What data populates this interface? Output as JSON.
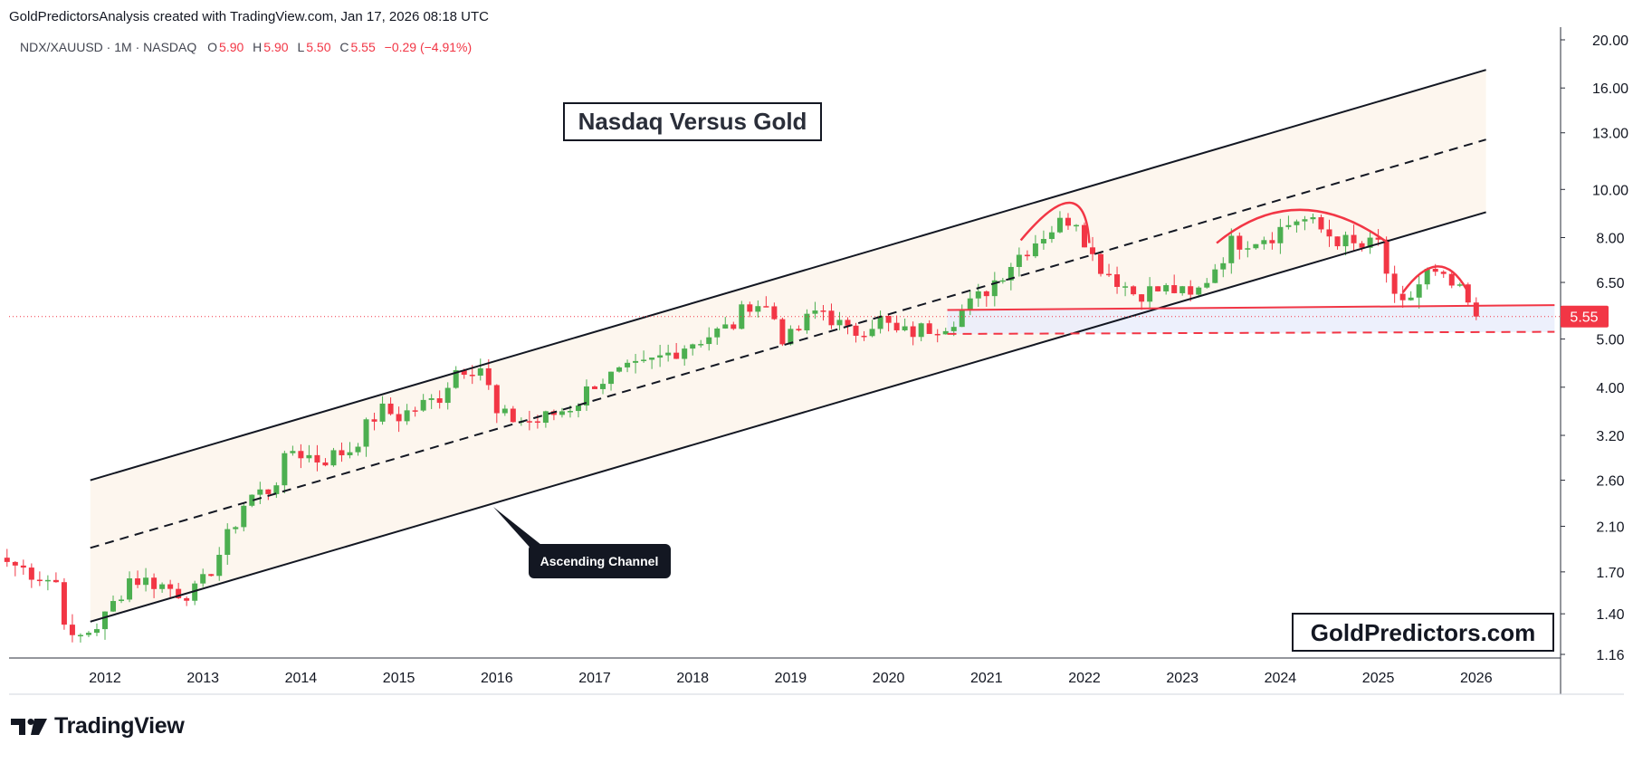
{
  "header": {
    "attribution": "GoldPredictorsAnalysis created with TradingView.com, Jan 17, 2026 08:18 UTC"
  },
  "legend": {
    "symbol": "NDX/XAUUSD · 1M · NASDAQ",
    "open_label": "O",
    "open": "5.90",
    "high_label": "H",
    "high": "5.90",
    "low_label": "L",
    "low": "5.50",
    "close_label": "C",
    "close": "5.55",
    "change": "−0.29 (−4.91%)"
  },
  "annotations": {
    "title_box": "Nasdaq Versus Gold",
    "channel_callout": "Ascending Channel",
    "watermark": "GoldPredictors.com",
    "last_price_tag": "5.55"
  },
  "footer": {
    "brand": "TradingView"
  },
  "colors": {
    "up": "#26a69a",
    "up_body": "#4caf50",
    "down": "#f23645",
    "channel_fill": "#fdf6ee",
    "zone_fill": "#e8ecfb",
    "price_line": "#f23645"
  },
  "chart_data": {
    "type": "candlestick",
    "scale": "log",
    "ylim": [
      1.16,
      20.0
    ],
    "y_ticks": [
      "20.00",
      "16.00",
      "13.00",
      "10.00",
      "8.00",
      "6.50",
      "5.00",
      "4.00",
      "3.20",
      "2.60",
      "2.10",
      "1.70",
      "1.40",
      "1.16"
    ],
    "x_ticks": [
      "2012",
      "2013",
      "2014",
      "2015",
      "2016",
      "2017",
      "2018",
      "2019",
      "2020",
      "2021",
      "2022",
      "2023",
      "2024",
      "2025",
      "2026"
    ],
    "last_price": 5.55,
    "monthly_closes": [
      {
        "t": 2011.0,
        "v": 1.78
      },
      {
        "t": 2011.5,
        "v": 1.62
      },
      {
        "t": 2011.65,
        "v": 1.22
      },
      {
        "t": 2011.9,
        "v": 1.32
      },
      {
        "t": 2012.0,
        "v": 1.38
      },
      {
        "t": 2012.25,
        "v": 1.65
      },
      {
        "t": 2012.5,
        "v": 1.62
      },
      {
        "t": 2012.75,
        "v": 1.55
      },
      {
        "t": 2012.95,
        "v": 1.55
      },
      {
        "t": 2013.2,
        "v": 1.9
      },
      {
        "t": 2013.45,
        "v": 2.4
      },
      {
        "t": 2013.7,
        "v": 2.5
      },
      {
        "t": 2013.9,
        "v": 3.0
      },
      {
        "t": 2014.2,
        "v": 2.85
      },
      {
        "t": 2014.5,
        "v": 3.0
      },
      {
        "t": 2014.8,
        "v": 3.6
      },
      {
        "t": 2015.0,
        "v": 3.5
      },
      {
        "t": 2015.4,
        "v": 3.8
      },
      {
        "t": 2015.6,
        "v": 4.4
      },
      {
        "t": 2015.85,
        "v": 4.4
      },
      {
        "t": 2016.0,
        "v": 3.5
      },
      {
        "t": 2016.4,
        "v": 3.4
      },
      {
        "t": 2016.8,
        "v": 3.7
      },
      {
        "t": 2017.0,
        "v": 4.1
      },
      {
        "t": 2017.5,
        "v": 4.4
      },
      {
        "t": 2017.95,
        "v": 4.9
      },
      {
        "t": 2018.4,
        "v": 5.3
      },
      {
        "t": 2018.6,
        "v": 6.0
      },
      {
        "t": 2018.8,
        "v": 5.7
      },
      {
        "t": 2018.95,
        "v": 4.9
      },
      {
        "t": 2019.3,
        "v": 5.8
      },
      {
        "t": 2019.6,
        "v": 5.1
      },
      {
        "t": 2019.9,
        "v": 5.5
      },
      {
        "t": 2020.1,
        "v": 5.1
      },
      {
        "t": 2020.3,
        "v": 5.2
      },
      {
        "t": 2020.6,
        "v": 5.4
      },
      {
        "t": 2020.9,
        "v": 6.0
      },
      {
        "t": 2021.3,
        "v": 7.3
      },
      {
        "t": 2021.6,
        "v": 8.2
      },
      {
        "t": 2021.9,
        "v": 8.9
      },
      {
        "t": 2022.1,
        "v": 7.2
      },
      {
        "t": 2022.5,
        "v": 6.2
      },
      {
        "t": 2022.9,
        "v": 6.3
      },
      {
        "t": 2023.1,
        "v": 6.0
      },
      {
        "t": 2023.5,
        "v": 7.8
      },
      {
        "t": 2023.9,
        "v": 8.1
      },
      {
        "t": 2024.2,
        "v": 8.8
      },
      {
        "t": 2024.5,
        "v": 8.1
      },
      {
        "t": 2024.8,
        "v": 7.6
      },
      {
        "t": 2025.0,
        "v": 7.8
      },
      {
        "t": 2025.2,
        "v": 5.6
      },
      {
        "t": 2025.5,
        "v": 6.8
      },
      {
        "t": 2025.8,
        "v": 6.3
      },
      {
        "t": 2026.0,
        "v": 5.55
      }
    ],
    "channel": {
      "upper": [
        {
          "t": 2011.85,
          "v": 2.6
        },
        {
          "t": 2026.1,
          "v": 17.4
        }
      ],
      "mid": [
        {
          "t": 2011.85,
          "v": 1.9
        },
        {
          "t": 2026.1,
          "v": 12.6
        }
      ],
      "lower": [
        {
          "t": 2011.85,
          "v": 1.35
        },
        {
          "t": 2026.1,
          "v": 9.0
        }
      ]
    },
    "support": {
      "upper_line": [
        {
          "t": 2020.6,
          "v": 5.72
        },
        {
          "t": 2026.8,
          "v": 5.85
        }
      ],
      "lower_dashed": [
        {
          "t": 2020.6,
          "v": 5.12
        },
        {
          "t": 2026.8,
          "v": 5.17
        }
      ]
    },
    "arcs": [
      {
        "from": {
          "t": 2021.35,
          "v": 7.9
        },
        "peak": {
          "t": 2021.85,
          "v": 9.4
        },
        "to": {
          "t": 2022.05,
          "v": 7.8
        }
      },
      {
        "from": {
          "t": 2023.35,
          "v": 7.8
        },
        "peak": {
          "t": 2024.2,
          "v": 9.1
        },
        "to": {
          "t": 2025.1,
          "v": 7.8
        }
      },
      {
        "from": {
          "t": 2025.25,
          "v": 6.2
        },
        "peak": {
          "t": 2025.6,
          "v": 7.0
        },
        "to": {
          "t": 2025.9,
          "v": 6.3
        }
      }
    ]
  }
}
